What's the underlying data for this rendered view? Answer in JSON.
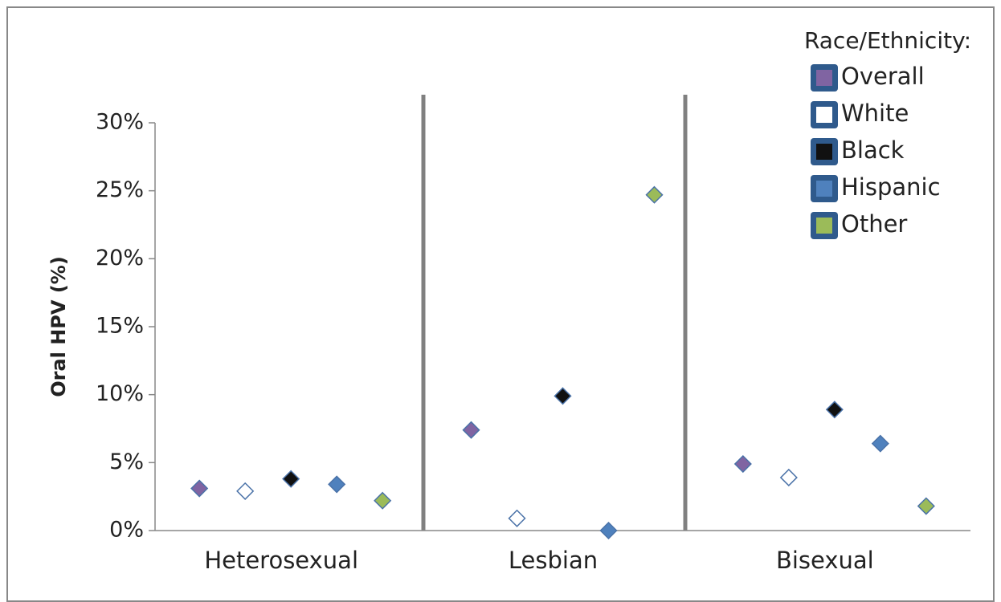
{
  "chart_data": {
    "type": "scatter",
    "y_label": "Oral HPV (%)",
    "legend_title": "Race/Ethnicity:",
    "legend_position": "upper right",
    "categories": [
      "Heterosexual",
      "Lesbian",
      "Bisexual"
    ],
    "series": [
      {
        "name": "Overall",
        "color": "#8064a2",
        "values": [
          3.1,
          7.4,
          4.9
        ]
      },
      {
        "name": "White",
        "color": "#ffffff",
        "values": [
          2.9,
          0.9,
          3.9
        ]
      },
      {
        "name": "Black",
        "color": "#111111",
        "values": [
          3.8,
          9.9,
          8.9
        ]
      },
      {
        "name": "Hispanic",
        "color": "#4f81bd",
        "values": [
          3.4,
          0,
          6.4
        ]
      },
      {
        "name": "Other",
        "color": "#9bbb59",
        "values": [
          2.2,
          24.7,
          1.8
        ]
      }
    ],
    "ylim": [
      0,
      30
    ],
    "yticks": [
      {
        "value": 0,
        "label": "0%"
      },
      {
        "value": 5,
        "label": "5%"
      },
      {
        "value": 10,
        "label": "10%"
      },
      {
        "value": 15,
        "label": "15%"
      },
      {
        "value": 20,
        "label": "20%"
      },
      {
        "value": 25,
        "label": "25%"
      },
      {
        "value": 30,
        "label": "30%"
      }
    ],
    "grid": false
  }
}
